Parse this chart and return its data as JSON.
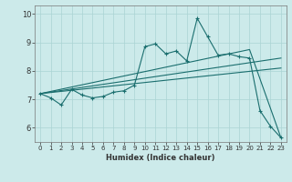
{
  "xlabel": "Humidex (Indice chaleur)",
  "bg_color": "#cceaea",
  "grid_color": "#aad4d4",
  "line_color": "#1a6e6e",
  "xlim": [
    -0.5,
    23.5
  ],
  "ylim": [
    5.5,
    10.3
  ],
  "xticks": [
    0,
    1,
    2,
    3,
    4,
    5,
    6,
    7,
    8,
    9,
    10,
    11,
    12,
    13,
    14,
    15,
    16,
    17,
    18,
    19,
    20,
    21,
    22,
    23
  ],
  "yticks": [
    6,
    7,
    8,
    9,
    10
  ],
  "series_main": {
    "x": [
      0,
      1,
      2,
      3,
      4,
      5,
      6,
      7,
      8,
      9,
      10,
      11,
      12,
      13,
      14,
      15,
      16,
      17,
      18,
      19,
      20,
      21,
      22,
      23
    ],
    "y": [
      7.2,
      7.05,
      6.8,
      7.35,
      7.15,
      7.05,
      7.1,
      7.25,
      7.3,
      7.5,
      8.85,
      8.95,
      8.6,
      8.7,
      8.35,
      9.85,
      9.2,
      8.55,
      8.6,
      8.5,
      8.45,
      6.6,
      6.05,
      5.65
    ]
  },
  "series_upper_trend": {
    "x": [
      0,
      20,
      23
    ],
    "y": [
      7.2,
      8.75,
      5.65
    ]
  },
  "series_mid_trend": {
    "x": [
      0,
      23
    ],
    "y": [
      7.2,
      8.45
    ]
  },
  "series_lower_trend": {
    "x": [
      0,
      23
    ],
    "y": [
      7.2,
      8.1
    ]
  }
}
